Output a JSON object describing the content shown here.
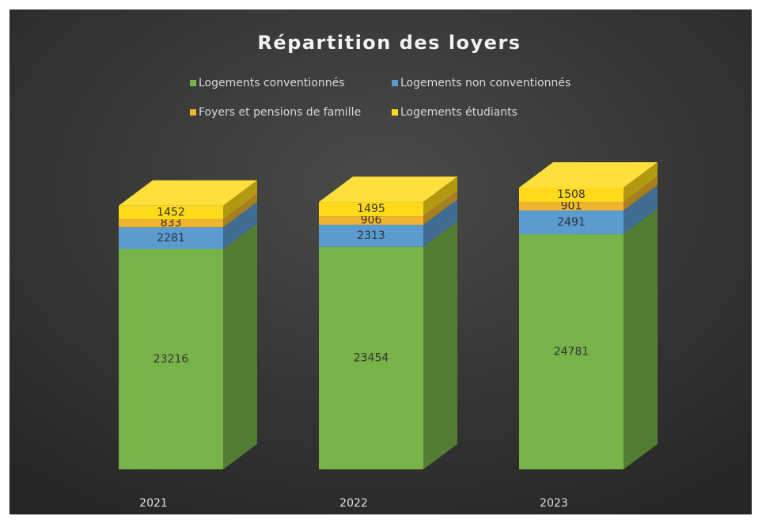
{
  "chart_data": {
    "type": "bar3d_stacked",
    "title": "Répartition des loyers",
    "categories": [
      "2021",
      "2022",
      "2023"
    ],
    "series": [
      {
        "name": "Logements conventionnés",
        "color": "#78b34a",
        "values": [
          23216,
          23454,
          24781
        ]
      },
      {
        "name": "Logements non conventionnés",
        "color": "#5a9bd0",
        "values": [
          2281,
          2313,
          2491
        ]
      },
      {
        "name": "Foyers et pensions de famille",
        "color": "#f0b42e",
        "values": [
          833,
          906,
          901
        ]
      },
      {
        "name": "Logements étudiants",
        "color": "#ffd91a",
        "values": [
          1452,
          1495,
          1508
        ]
      }
    ]
  }
}
